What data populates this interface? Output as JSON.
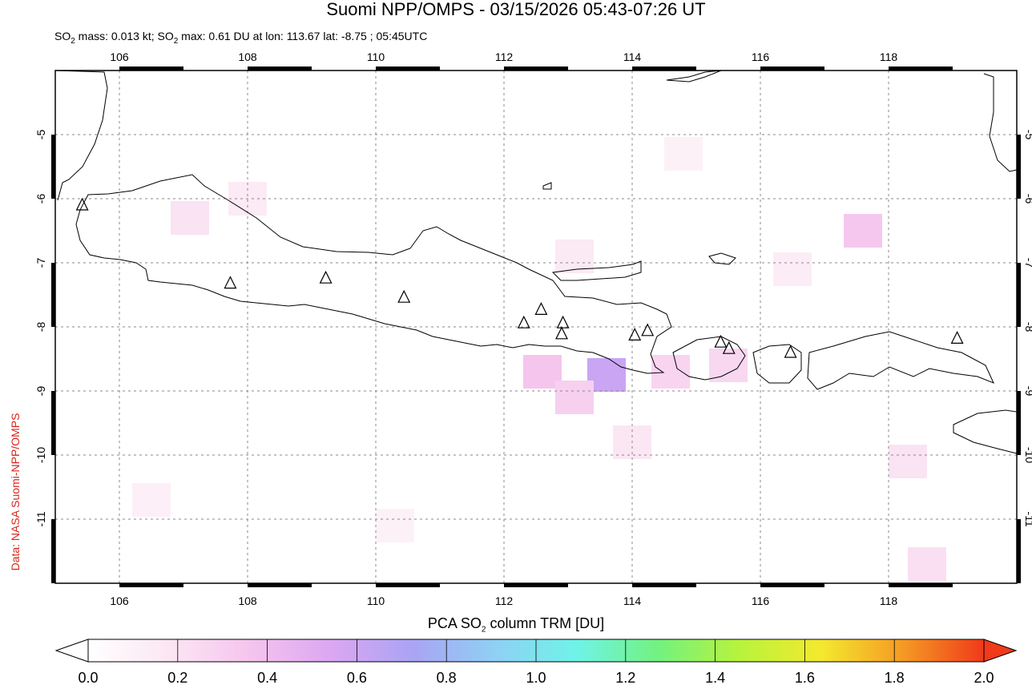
{
  "header": {
    "title": "Suomi NPP/OMPS - 03/15/2026 05:43-07:26 UT",
    "subtitle_prefix": "SO",
    "subtitle_sub": "2",
    "subtitle_mid": " mass: 0.013 kt; SO",
    "subtitle_sub2": "2",
    "subtitle_rest": " max: 0.61 DU at lon: 113.67 lat: -8.75 ; 05:45UTC"
  },
  "credit": "Data: NASA Suomi-NPP/OMPS",
  "colorbar": {
    "label_prefix": "PCA SO",
    "label_sub": "2",
    "label_rest": " column TRM [DU]",
    "ticks": [
      "0.0",
      "0.2",
      "0.4",
      "0.6",
      "0.8",
      "1.0",
      "1.2",
      "1.4",
      "1.6",
      "1.8",
      "2.0"
    ],
    "colors": [
      "#ffffff",
      "#fbe6f3",
      "#f5c4ee",
      "#dba6f2",
      "#a9a4f4",
      "#8fd0f4",
      "#6ff3e8",
      "#72f27f",
      "#b8f33c",
      "#f4e92e",
      "#f59a24",
      "#f03a1a"
    ],
    "min": 0.0,
    "max": 2.0
  },
  "map": {
    "lon_range": [
      105,
      120
    ],
    "lat_range": [
      -12,
      -4
    ],
    "lon_ticks": [
      "106",
      "108",
      "110",
      "112",
      "114",
      "116",
      "118"
    ],
    "lat_ticks": [
      "-5",
      "-6",
      "-7",
      "-8",
      "-9",
      "-10",
      "-11"
    ],
    "max_value": {
      "value": 0.61,
      "lon": 113.67,
      "lat": -8.75
    },
    "volcanoes": [
      {
        "lon": 105.42,
        "lat": -6.1
      },
      {
        "lon": 107.73,
        "lat": -7.32
      },
      {
        "lon": 109.22,
        "lat": -7.24
      },
      {
        "lon": 110.44,
        "lat": -7.54
      },
      {
        "lon": 112.31,
        "lat": -7.94
      },
      {
        "lon": 112.58,
        "lat": -7.73
      },
      {
        "lon": 112.92,
        "lat": -7.94
      },
      {
        "lon": 112.9,
        "lat": -8.11
      },
      {
        "lon": 114.04,
        "lat": -8.13
      },
      {
        "lon": 114.24,
        "lat": -8.06
      },
      {
        "lon": 115.38,
        "lat": -8.24
      },
      {
        "lon": 115.51,
        "lat": -8.34
      },
      {
        "lon": 116.47,
        "lat": -8.4
      },
      {
        "lon": 119.07,
        "lat": -8.18
      }
    ],
    "so2_cells": [
      {
        "lon": 112.6,
        "lat": -8.7,
        "v": 0.36
      },
      {
        "lon": 113.6,
        "lat": -8.75,
        "v": 0.61
      },
      {
        "lon": 113.1,
        "lat": -9.1,
        "v": 0.3
      },
      {
        "lon": 114.6,
        "lat": -8.7,
        "v": 0.28
      },
      {
        "lon": 115.5,
        "lat": -8.6,
        "v": 0.26
      },
      {
        "lon": 117.6,
        "lat": -6.5,
        "v": 0.35
      },
      {
        "lon": 107.1,
        "lat": -6.3,
        "v": 0.2
      },
      {
        "lon": 108.0,
        "lat": -6.0,
        "v": 0.15
      },
      {
        "lon": 113.1,
        "lat": -6.9,
        "v": 0.16
      },
      {
        "lon": 118.3,
        "lat": -10.1,
        "v": 0.2
      },
      {
        "lon": 118.6,
        "lat": -11.7,
        "v": 0.22
      },
      {
        "lon": 114.0,
        "lat": -9.8,
        "v": 0.18
      },
      {
        "lon": 106.5,
        "lat": -10.7,
        "v": 0.12
      },
      {
        "lon": 110.3,
        "lat": -11.1,
        "v": 0.1
      },
      {
        "lon": 116.5,
        "lat": -7.1,
        "v": 0.14
      },
      {
        "lon": 114.8,
        "lat": -5.3,
        "v": 0.1
      }
    ]
  }
}
